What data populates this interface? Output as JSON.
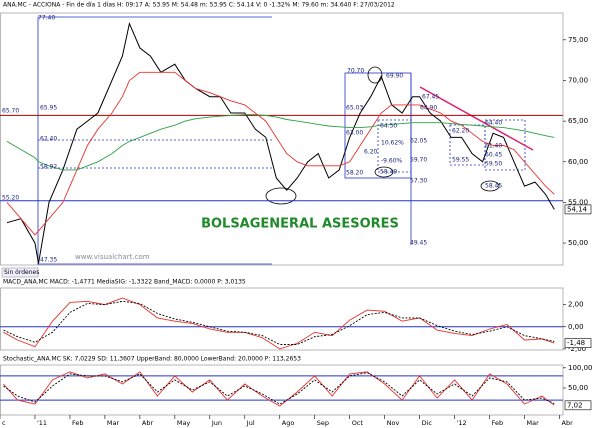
{
  "chart_data": [
    {
      "type": "line",
      "title": "ANA.MC - ACCIONA - Fin de día 1 días   H: 09:17   A: 53.95   M: 54.48   m: 53.95   C: 54.14   V: 0   -1.32%   M: 79.60   m: 34.640   F: 27/03/2012",
      "x": [
        -0.8,
        -0.4,
        0,
        0.1,
        0.4,
        0.8,
        1.2,
        1.5,
        1.8,
        2.2,
        2.5,
        2.7,
        3,
        3.3,
        3.6,
        4,
        4.3,
        4.6,
        5,
        5.3,
        5.6,
        6,
        6.3,
        6.6,
        6.9,
        7.2,
        7.5,
        7.8,
        8.1,
        8.4,
        8.7,
        9,
        9.3,
        9.6,
        9.9,
        10.2,
        10.5,
        10.8,
        11,
        11.3,
        11.6,
        11.9,
        12.2,
        12.5,
        12.8,
        13.1,
        13.4,
        13.7,
        14,
        14.3,
        14.6,
        14.85
      ],
      "series": [
        {
          "color": "#000000",
          "values": [
            52.5,
            53,
            50,
            47.5,
            55,
            59,
            64,
            65,
            66,
            70,
            73,
            77,
            74,
            73,
            71,
            72,
            70,
            69,
            68,
            68,
            66,
            66,
            64,
            63,
            58,
            56.5,
            58,
            60,
            61,
            58,
            59,
            63,
            66,
            68,
            70.5,
            67,
            66,
            68,
            68,
            66,
            65,
            63,
            63,
            61,
            60,
            63.5,
            63,
            60,
            57,
            57.5,
            56,
            54.14
          ],
          "value_labels": [
            null,
            null,
            null,
            null,
            null,
            null,
            null,
            null,
            null,
            null,
            null,
            null,
            null,
            null,
            null,
            null,
            null,
            null,
            null,
            null,
            null,
            null,
            null,
            null,
            null,
            null,
            null,
            null,
            null,
            null,
            null,
            null,
            null,
            null,
            null,
            null,
            null,
            null,
            null,
            null,
            null,
            null,
            null,
            null,
            null,
            null,
            null,
            null,
            null,
            null,
            null,
            "54,14"
          ]
        },
        {
          "color": "#e8322b",
          "values": [
            55,
            53,
            51,
            51.5,
            53,
            55,
            59,
            62,
            64,
            66,
            68,
            70,
            71,
            71,
            71,
            71,
            70,
            69,
            68.5,
            68,
            67.5,
            67,
            66,
            65,
            63,
            61,
            60,
            59.5,
            59.5,
            59.5,
            59.5,
            60,
            62,
            64,
            66,
            67,
            67,
            67,
            67,
            66.5,
            66,
            65,
            64.5,
            63.5,
            62.5,
            62,
            62,
            61.5,
            60,
            58.5,
            57,
            56
          ]
        },
        {
          "color": "#2ea043",
          "values": [
            62.5,
            61.5,
            60.5,
            60,
            59.5,
            59,
            59,
            59.5,
            60,
            61,
            62,
            62.5,
            63,
            63.5,
            64,
            64.5,
            65,
            65.3,
            65.5,
            65.6,
            65.7,
            65.8,
            65.8,
            65.7,
            65.5,
            65.2,
            65,
            64.8,
            64.6,
            64.4,
            64.3,
            64.2,
            64.2,
            64.3,
            64.5,
            64.6,
            64.7,
            64.8,
            64.8,
            64.8,
            64.8,
            64.7,
            64.6,
            64.5,
            64.4,
            64.3,
            64.2,
            64,
            63.8,
            63.5,
            63.2,
            63
          ]
        }
      ],
      "hlines": [
        {
          "value": 65.7,
          "color": "#b00000"
        },
        {
          "value": 55.2,
          "color": "#2233cc"
        }
      ],
      "xlim": [
        -1,
        15.1
      ],
      "ylim": [
        47.3,
        78.3
      ],
      "yticks": [
        {
          "value": 50,
          "label": "50,00"
        },
        {
          "value": 55,
          "label": "55,00"
        },
        {
          "value": 60,
          "label": "60,00"
        },
        {
          "value": 65,
          "label": "65,00"
        },
        {
          "value": 70,
          "label": "70,00"
        },
        {
          "value": 75,
          "label": "75,00"
        }
      ],
      "annotations": [
        "77.40",
        "65.70",
        "65.95",
        "62.40",
        "58.92",
        "55.20",
        "47.35",
        "70.70",
        "69.90",
        "65.03",
        "64.50",
        "63.00",
        "6.20",
        "10.62%",
        "-9.60%",
        "58.20",
        "58.49",
        "62.05",
        "59.70",
        "57.30",
        "49.45",
        "67.45",
        "64.90",
        "62.20",
        "59.55",
        "64.40",
        "61.40",
        "60.45",
        "59.50",
        "58.45"
      ],
      "logo_text": "BOLSAGENERAL ASESORES",
      "watermark": "www.visualchart.com",
      "status": "Sin órdenes"
    },
    {
      "type": "line",
      "title": "MACD_ANA.MC   MACD: -1,4771   MediaSIG: -1,3322   Band_MACD: 0,0000   P: 3,0135",
      "x": [
        -0.9,
        -0.5,
        0,
        0.5,
        1,
        1.5,
        2,
        2.5,
        3,
        3.5,
        4,
        4.5,
        5,
        5.5,
        6,
        6.5,
        7,
        7.5,
        8,
        8.5,
        9,
        9.5,
        10,
        10.5,
        11,
        11.5,
        12,
        12.5,
        13,
        13.5,
        14,
        14.5,
        14.85
      ],
      "series": [
        {
          "color": "#e8322b",
          "dashed": false,
          "values": [
            -0.5,
            -1.2,
            -1.8,
            0.5,
            2.2,
            2.3,
            2.0,
            2.6,
            2.0,
            0.8,
            0.5,
            0.3,
            -0.2,
            -0.5,
            -0.5,
            -1.0,
            -2.0,
            -1.5,
            -0.5,
            -0.8,
            0.6,
            1.5,
            1.4,
            0.5,
            0.8,
            -0.3,
            -0.6,
            -0.8,
            -0.2,
            0.2,
            -1.2,
            -1.1,
            -1.4771
          ],
          "value_labels": [
            null,
            null,
            null,
            null,
            null,
            null,
            null,
            null,
            null,
            null,
            null,
            null,
            null,
            null,
            null,
            null,
            null,
            null,
            null,
            null,
            null,
            null,
            null,
            null,
            null,
            null,
            null,
            null,
            null,
            null,
            null,
            null,
            "-1,48"
          ]
        },
        {
          "color": "#000000",
          "dashed": true,
          "values": [
            -0.3,
            -0.9,
            -1.4,
            -0.5,
            1.3,
            2.1,
            2.0,
            2.3,
            2.1,
            1.2,
            0.7,
            0.4,
            0.0,
            -0.4,
            -0.5,
            -0.8,
            -1.6,
            -1.6,
            -0.9,
            -0.7,
            0.1,
            1.1,
            1.3,
            0.8,
            0.8,
            0.1,
            -0.4,
            -0.7,
            -0.4,
            0.0,
            -0.8,
            -1.1,
            -1.3322
          ]
        }
      ],
      "hlines": [
        {
          "value": 0,
          "color": "#2233cc"
        }
      ],
      "xlim": [
        -1,
        15.1
      ],
      "ylim": [
        -2.1,
        3.5
      ],
      "yticks": [
        {
          "value": -2,
          "label": "-2,00"
        },
        {
          "value": 0,
          "label": "0,00"
        },
        {
          "value": 2,
          "label": "2,00"
        }
      ]
    },
    {
      "type": "line",
      "title": "Stochastic_ANA.MC   SK: 7,0229   SD: 11,3607   UpperBand: 80,0000   LowerBand: 20,0000   P: 113,2653",
      "x": [
        -0.9,
        -0.5,
        0,
        0.5,
        1,
        1.5,
        2,
        2.5,
        3,
        3.5,
        4,
        4.5,
        5,
        5.5,
        6,
        6.5,
        7,
        7.5,
        8,
        8.5,
        9,
        9.5,
        10,
        10.5,
        11,
        11.5,
        12,
        12.5,
        13,
        13.5,
        14,
        14.5,
        14.85
      ],
      "series": [
        {
          "color": "#e8322b",
          "dashed": false,
          "values": [
            60,
            20,
            10,
            70,
            90,
            75,
            85,
            60,
            90,
            30,
            80,
            40,
            70,
            20,
            60,
            30,
            5,
            40,
            80,
            30,
            85,
            90,
            60,
            20,
            80,
            25,
            70,
            20,
            85,
            60,
            10,
            30,
            7.0229
          ],
          "value_labels": [
            null,
            null,
            null,
            null,
            null,
            null,
            null,
            null,
            null,
            null,
            null,
            null,
            null,
            null,
            null,
            null,
            null,
            null,
            null,
            null,
            null,
            null,
            null,
            null,
            null,
            null,
            null,
            null,
            null,
            null,
            null,
            null,
            "7,02"
          ]
        },
        {
          "color": "#000000",
          "dashed": true,
          "values": [
            55,
            30,
            15,
            55,
            85,
            80,
            80,
            65,
            85,
            40,
            70,
            45,
            65,
            30,
            55,
            35,
            10,
            35,
            70,
            40,
            80,
            88,
            65,
            30,
            70,
            35,
            60,
            30,
            75,
            65,
            20,
            25,
            11.3607
          ]
        }
      ],
      "hlines": [
        {
          "value": 80,
          "color": "#2233cc"
        },
        {
          "value": 20,
          "color": "#2233cc"
        }
      ],
      "xlim": [
        -1,
        15.1
      ],
      "ylim": [
        -17,
        107
      ],
      "yticks": [
        {
          "value": 50,
          "label": "50,00"
        },
        {
          "value": 100,
          "label": "100,00"
        }
      ],
      "xticks": [
        {
          "value": -1,
          "label": "c"
        },
        {
          "value": 0,
          "label": "'11"
        },
        {
          "value": 1,
          "label": "Feb"
        },
        {
          "value": 2,
          "label": "Mar"
        },
        {
          "value": 3,
          "label": "Abr"
        },
        {
          "value": 4,
          "label": "May"
        },
        {
          "value": 5,
          "label": "Jun"
        },
        {
          "value": 6,
          "label": "Jul"
        },
        {
          "value": 7,
          "label": "Ago"
        },
        {
          "value": 8,
          "label": "Sep"
        },
        {
          "value": 9,
          "label": "Oct"
        },
        {
          "value": 10,
          "label": "Nov"
        },
        {
          "value": 11,
          "label": "Dic"
        },
        {
          "value": 12,
          "label": "'12"
        },
        {
          "value": 13,
          "label": "Feb"
        },
        {
          "value": 14,
          "label": "Mar"
        },
        {
          "value": 15,
          "label": "Abr"
        }
      ]
    }
  ]
}
